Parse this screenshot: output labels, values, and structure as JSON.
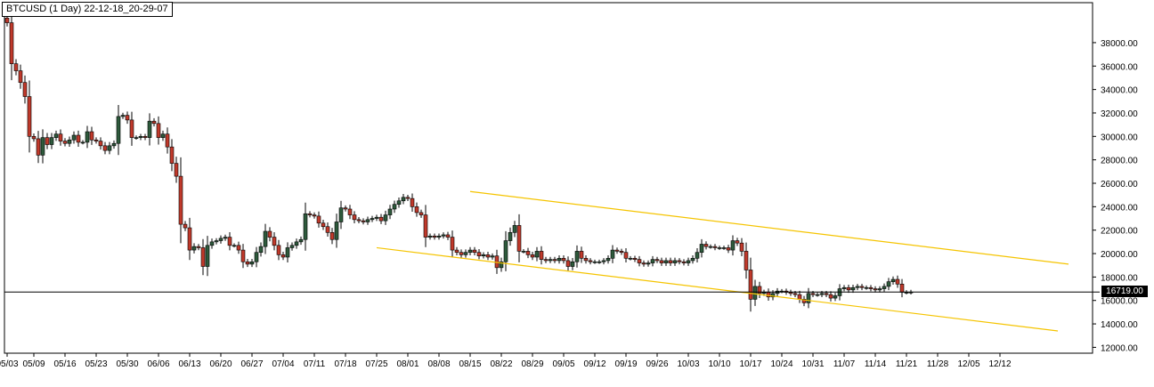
{
  "window": {
    "title": "BTCUSD (1 Day) 22-12-18_20-29-07"
  },
  "colors": {
    "background": "#ffffff",
    "up_candle": "#2e5a3c",
    "down_candle": "#c0392b",
    "channel": "#f5c400",
    "current_price_line": "#000000"
  },
  "chart_data": {
    "type": "candlestick",
    "title": "BTCUSD (1 Day) 22-12-18_20-29-07",
    "symbol": "BTCUSD",
    "timeframe": "1 Day",
    "current_price": 16719.0,
    "current_price_label": "16719.00",
    "ylim": [
      11500,
      40500
    ],
    "y_ticks": [
      12000,
      14000,
      16000,
      18000,
      20000,
      22000,
      24000,
      26000,
      28000,
      30000,
      32000,
      34000,
      36000,
      38000
    ],
    "y_tick_labels": [
      "12000.00",
      "14000.00",
      "16000.00",
      "18000.00",
      "20000.00",
      "22000.00",
      "24000.00",
      "26000.00",
      "28000.00",
      "30000.00",
      "32000.00",
      "34000.00",
      "36000.00",
      "38000.00"
    ],
    "x_tick_labels": [
      "05/03",
      "05/09",
      "05/16",
      "05/23",
      "05/30",
      "06/06",
      "06/13",
      "06/20",
      "06/27",
      "07/04",
      "07/11",
      "07/18",
      "07/25",
      "08/01",
      "08/08",
      "08/15",
      "08/22",
      "08/29",
      "09/05",
      "09/12",
      "09/19",
      "09/26",
      "10/03",
      "10/10",
      "10/17",
      "10/24",
      "10/31",
      "11/07",
      "11/14",
      "11/21",
      "11/28",
      "12/05",
      "12/12"
    ],
    "start_date": "05/03",
    "closes": [
      39700,
      36200,
      35600,
      34600,
      33400,
      30000,
      29800,
      28400,
      29900,
      29300,
      29900,
      30200,
      29600,
      29400,
      29700,
      30100,
      29500,
      29500,
      30400,
      29700,
      29600,
      29200,
      28800,
      29200,
      29400,
      31700,
      31800,
      31400,
      29900,
      29900,
      30000,
      29900,
      31300,
      31100,
      29900,
      30200,
      29100,
      27700,
      26600,
      22500,
      22200,
      20300,
      20600,
      20500,
      18900,
      20700,
      21000,
      21100,
      21300,
      21400,
      20700,
      20700,
      20300,
      19300,
      19100,
      19300,
      20100,
      20600,
      21900,
      21400,
      20700,
      19900,
      19700,
      20500,
      20700,
      21000,
      21200,
      23400,
      23300,
      23200,
      22600,
      22300,
      21800,
      21200,
      22700,
      23900,
      23800,
      23300,
      22900,
      22800,
      22700,
      22900,
      23000,
      23100,
      22800,
      23300,
      23800,
      24200,
      24500,
      24800,
      24700,
      24000,
      23500,
      23300,
      21400,
      21500,
      21400,
      21500,
      21600,
      21400,
      20300,
      20100,
      19900,
      20100,
      20300,
      20100,
      19800,
      19900,
      19700,
      19800,
      18800,
      19300,
      21100,
      21800,
      22400,
      20200,
      20200,
      19900,
      19700,
      20200,
      19500,
      19400,
      19500,
      19400,
      19600,
      19400,
      18900,
      19300,
      20200,
      19600,
      19400,
      19300,
      19300,
      19300,
      19400,
      19600,
      20300,
      20200,
      20100,
      19600,
      19600,
      19500,
      19200,
      19100,
      19200,
      19500,
      19400,
      19200,
      19400,
      19200,
      19400,
      19300,
      19200,
      19400,
      19600,
      20100,
      20800,
      20600,
      20600,
      20500,
      20500,
      20500,
      20300,
      21100,
      20900,
      20200,
      18600,
      16100,
      17200,
      16600,
      16700,
      16300,
      16600,
      16800,
      16800,
      16700,
      16600,
      16500,
      16100,
      15800,
      16600,
      16500,
      16500,
      16600,
      16500,
      16200,
      16400,
      17000,
      17100,
      16900,
      17100,
      17200,
      17100,
      17100,
      17000,
      16900,
      17000,
      17200,
      17600,
      17800,
      17400,
      16700,
      16700,
      16719
    ],
    "channel_upper": {
      "from": {
        "date": "08/15",
        "price": 25300
      },
      "to": {
        "date": "after 12/12 (right end)",
        "price": 19100
      }
    },
    "channel_lower": {
      "from": {
        "date": "07/25",
        "price": 20500
      },
      "to": {
        "date": "after 12/12 (right end)",
        "price": 13400
      }
    },
    "grid": false,
    "legend": "none"
  }
}
